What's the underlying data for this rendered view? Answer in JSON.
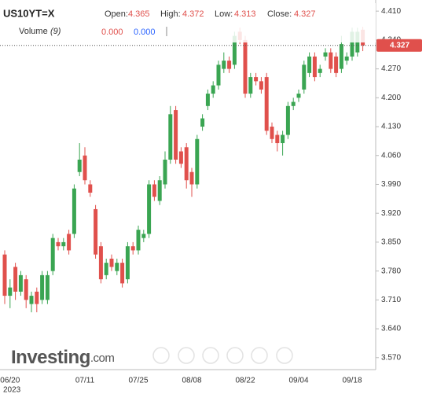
{
  "header": {
    "symbol": "US10YT=X",
    "open_label": "Open:",
    "high_label": "High:",
    "low_label": "Low:",
    "close_label": "Close:",
    "volume_label": "Volume",
    "volume_param": "(9)",
    "volume_values": [
      "0.000",
      "0.000"
    ]
  },
  "watermark": {
    "main": "Investing",
    "suffix": ".com"
  },
  "chart_data": {
    "type": "candlestick",
    "categories": [
      null,
      "06/20",
      null,
      null,
      null,
      null,
      null,
      null,
      null,
      null,
      null,
      null,
      null,
      null,
      null,
      "07/11",
      null,
      null,
      null,
      null,
      null,
      null,
      null,
      null,
      null,
      "07/25",
      null,
      null,
      null,
      null,
      null,
      null,
      null,
      null,
      null,
      "08/08",
      null,
      null,
      null,
      null,
      null,
      null,
      null,
      null,
      null,
      "08/22",
      null,
      null,
      null,
      null,
      null,
      null,
      null,
      null,
      null,
      "09/04",
      null,
      null,
      null,
      null,
      null,
      null,
      null,
      null,
      null,
      "09/18",
      null,
      null
    ],
    "year_label": "2023",
    "open": [
      3.82,
      3.72,
      3.79,
      3.73,
      3.76,
      3.7,
      3.73,
      3.71,
      3.71,
      3.78,
      3.85,
      3.84,
      3.87,
      3.87,
      4.02,
      4.06,
      3.99,
      3.93,
      3.84,
      3.77,
      3.81,
      3.78,
      3.8,
      3.76,
      3.84,
      3.83,
      3.86,
      3.87,
      3.99,
      3.95,
      3.99,
      4.05,
      4.17,
      4.07,
      4.08,
      4.02,
      3.99,
      4.13,
      4.18,
      4.21,
      4.23,
      4.27,
      4.29,
      4.28,
      4.36,
      4.34,
      4.21,
      4.25,
      4.24,
      4.25,
      4.13,
      4.11,
      4.09,
      4.11,
      4.18,
      4.2,
      4.22,
      4.26,
      4.3,
      4.26,
      4.3,
      4.31,
      4.3,
      4.27,
      4.29,
      4.3,
      4.31,
      4.365
    ],
    "high": [
      3.83,
      3.76,
      3.8,
      3.78,
      3.77,
      3.73,
      3.74,
      3.78,
      3.78,
      3.87,
      3.86,
      3.86,
      3.88,
      3.99,
      4.09,
      4.08,
      4.0,
      3.94,
      3.85,
      3.81,
      3.82,
      3.81,
      3.81,
      3.85,
      3.85,
      3.89,
      3.88,
      4.0,
      4.0,
      4.01,
      4.07,
      4.18,
      4.18,
      4.08,
      4.09,
      4.03,
      4.11,
      4.16,
      4.22,
      4.24,
      4.29,
      4.31,
      4.3,
      4.36,
      4.37,
      4.35,
      4.26,
      4.26,
      4.25,
      4.26,
      4.14,
      4.12,
      4.12,
      4.19,
      4.2,
      4.22,
      4.29,
      4.31,
      4.31,
      4.28,
      4.32,
      4.32,
      4.31,
      4.35,
      4.31,
      4.37,
      4.37,
      4.372
    ],
    "low": [
      3.7,
      3.69,
      3.71,
      3.72,
      3.69,
      3.68,
      3.68,
      3.7,
      3.7,
      3.77,
      3.83,
      3.83,
      3.82,
      3.86,
      4.01,
      3.99,
      3.96,
      3.81,
      3.75,
      3.76,
      3.78,
      3.77,
      3.74,
      3.75,
      3.82,
      3.82,
      3.85,
      3.86,
      3.95,
      3.94,
      3.98,
      4.04,
      4.04,
      4.03,
      3.98,
      3.96,
      3.98,
      4.12,
      4.17,
      4.2,
      4.22,
      4.26,
      4.26,
      4.27,
      4.33,
      4.2,
      4.2,
      4.23,
      4.21,
      4.11,
      4.09,
      4.07,
      4.06,
      4.1,
      4.17,
      4.19,
      4.21,
      4.25,
      4.24,
      4.25,
      4.29,
      4.26,
      4.25,
      4.26,
      4.28,
      4.29,
      4.3,
      4.313
    ],
    "close": [
      3.72,
      3.74,
      3.73,
      3.77,
      3.71,
      3.72,
      3.7,
      3.77,
      3.77,
      3.86,
      3.84,
      3.85,
      3.83,
      3.98,
      4.05,
      4.0,
      3.97,
      3.82,
      3.76,
      3.8,
      3.79,
      3.8,
      3.75,
      3.84,
      3.83,
      3.88,
      3.87,
      3.99,
      3.96,
      4.0,
      4.05,
      4.16,
      4.05,
      4.04,
      4.0,
      3.99,
      4.1,
      4.15,
      4.21,
      4.23,
      4.28,
      4.29,
      4.27,
      4.35,
      4.34,
      4.21,
      4.25,
      4.24,
      4.22,
      4.12,
      4.1,
      4.09,
      4.11,
      4.18,
      4.19,
      4.21,
      4.28,
      4.3,
      4.25,
      4.27,
      4.31,
      4.27,
      4.26,
      4.33,
      4.3,
      4.36,
      4.36,
      4.327
    ],
    "up_color": "#3aa552",
    "down_color": "#e0504c",
    "ylim": [
      3.541,
      4.437
    ],
    "yticks": [
      {
        "value": 3.57,
        "label": "3.570"
      },
      {
        "value": 3.64,
        "label": "3.640"
      },
      {
        "value": 3.71,
        "label": "3.710"
      },
      {
        "value": 3.78,
        "label": "3.780"
      },
      {
        "value": 3.85,
        "label": "3.850"
      },
      {
        "value": 3.92,
        "label": "3.920"
      },
      {
        "value": 3.99,
        "label": "3.990"
      },
      {
        "value": 4.06,
        "label": "4.060"
      },
      {
        "value": 4.13,
        "label": "4.130"
      },
      {
        "value": 4.2,
        "label": "4.200"
      },
      {
        "value": 4.27,
        "label": "4.270"
      },
      {
        "value": 4.34,
        "label": "4.340"
      },
      {
        "value": 4.41,
        "label": "4.410"
      }
    ],
    "grid": false
  }
}
